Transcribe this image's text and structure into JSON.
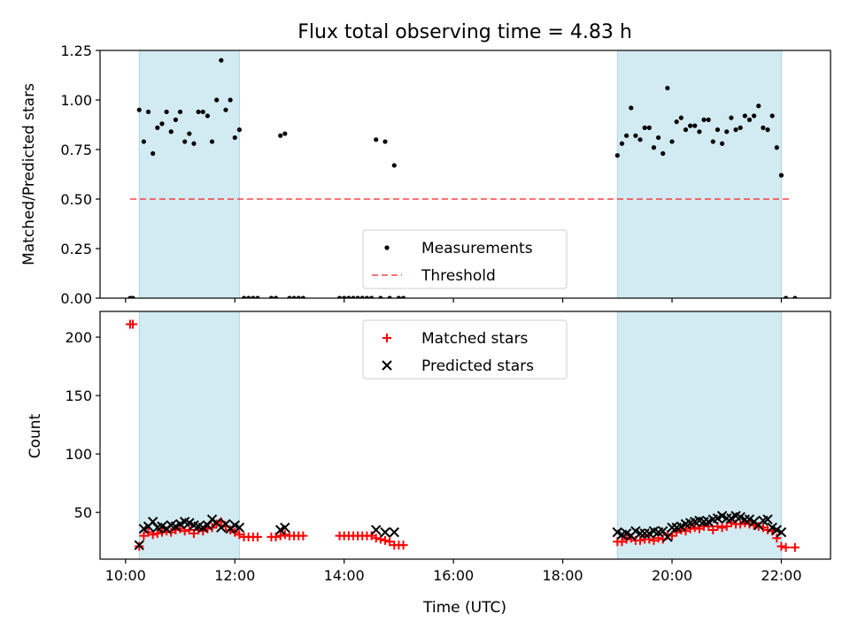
{
  "chart_data": [
    {
      "type": "scatter",
      "title": "Flux total observing time = 4.83 h",
      "xlabel": "",
      "ylabel": "Matched/Predicted stars",
      "xlim": [
        "09:32",
        "22:54"
      ],
      "ylim": [
        0,
        1.25
      ],
      "y_ticks": [
        "0.00",
        "0.25",
        "0.50",
        "0.75",
        "1.00",
        "1.25"
      ],
      "shaded_intervals": [
        [
          "10:15",
          "12:05"
        ],
        [
          "19:00",
          "22:00"
        ]
      ],
      "shade_color": "#add8e6",
      "threshold": {
        "name": "Threshold",
        "value": 0.5,
        "x_range": [
          "10:05",
          "22:10"
        ],
        "color": "#ff0000",
        "style": "dashed"
      },
      "legend": {
        "placement": "lower-center",
        "entries": [
          "Measurements",
          "Threshold"
        ]
      },
      "series": [
        {
          "name": "Measurements",
          "color": "#000000",
          "marker": "dot",
          "points": [
            [
              "10:05",
              0.0
            ],
            [
              "10:08",
              0.0
            ],
            [
              "10:15",
              0.95
            ],
            [
              "10:20",
              0.79
            ],
            [
              "10:25",
              0.94
            ],
            [
              "10:30",
              0.73
            ],
            [
              "10:35",
              0.86
            ],
            [
              "10:40",
              0.88
            ],
            [
              "10:45",
              0.94
            ],
            [
              "10:50",
              0.84
            ],
            [
              "10:55",
              0.9
            ],
            [
              "11:00",
              0.94
            ],
            [
              "11:05",
              0.79
            ],
            [
              "11:10",
              0.83
            ],
            [
              "11:15",
              0.78
            ],
            [
              "11:20",
              0.94
            ],
            [
              "11:25",
              0.94
            ],
            [
              "11:30",
              0.92
            ],
            [
              "11:35",
              0.79
            ],
            [
              "11:40",
              1.0
            ],
            [
              "11:45",
              1.2
            ],
            [
              "11:50",
              0.95
            ],
            [
              "11:55",
              1.0
            ],
            [
              "12:00",
              0.81
            ],
            [
              "12:05",
              0.85
            ],
            [
              "12:10",
              0.0
            ],
            [
              "12:15",
              0.0
            ],
            [
              "12:20",
              0.0
            ],
            [
              "12:25",
              0.0
            ],
            [
              "12:40",
              0.0
            ],
            [
              "12:45",
              0.0
            ],
            [
              "12:50",
              0.82
            ],
            [
              "12:55",
              0.83
            ],
            [
              "13:00",
              0.0
            ],
            [
              "13:05",
              0.0
            ],
            [
              "13:10",
              0.0
            ],
            [
              "13:15",
              0.0
            ],
            [
              "13:55",
              0.0
            ],
            [
              "14:00",
              0.0
            ],
            [
              "14:05",
              0.0
            ],
            [
              "14:10",
              0.0
            ],
            [
              "14:15",
              0.0
            ],
            [
              "14:20",
              0.0
            ],
            [
              "14:25",
              0.0
            ],
            [
              "14:30",
              0.0
            ],
            [
              "14:35",
              0.8
            ],
            [
              "14:40",
              0.0
            ],
            [
              "14:45",
              0.79
            ],
            [
              "14:50",
              0.0
            ],
            [
              "14:55",
              0.67
            ],
            [
              "15:00",
              0.0
            ],
            [
              "15:05",
              0.0
            ],
            [
              "19:00",
              0.72
            ],
            [
              "19:05",
              0.78
            ],
            [
              "19:10",
              0.82
            ],
            [
              "19:15",
              0.96
            ],
            [
              "19:20",
              0.82
            ],
            [
              "19:25",
              0.8
            ],
            [
              "19:30",
              0.86
            ],
            [
              "19:35",
              0.86
            ],
            [
              "19:40",
              0.76
            ],
            [
              "19:45",
              0.81
            ],
            [
              "19:50",
              0.73
            ],
            [
              "19:55",
              1.06
            ],
            [
              "20:00",
              0.79
            ],
            [
              "20:05",
              0.89
            ],
            [
              "20:10",
              0.91
            ],
            [
              "20:15",
              0.85
            ],
            [
              "20:20",
              0.87
            ],
            [
              "20:25",
              0.87
            ],
            [
              "20:30",
              0.84
            ],
            [
              "20:35",
              0.9
            ],
            [
              "20:40",
              0.9
            ],
            [
              "20:45",
              0.79
            ],
            [
              "20:50",
              0.85
            ],
            [
              "20:55",
              0.78
            ],
            [
              "21:00",
              0.84
            ],
            [
              "21:05",
              0.91
            ],
            [
              "21:10",
              0.85
            ],
            [
              "21:15",
              0.86
            ],
            [
              "21:20",
              0.92
            ],
            [
              "21:25",
              0.9
            ],
            [
              "21:30",
              0.92
            ],
            [
              "21:35",
              0.97
            ],
            [
              "21:40",
              0.86
            ],
            [
              "21:45",
              0.85
            ],
            [
              "21:50",
              0.92
            ],
            [
              "21:55",
              0.76
            ],
            [
              "22:00",
              0.62
            ],
            [
              "22:05",
              0.0
            ],
            [
              "22:15",
              0.0
            ]
          ]
        }
      ]
    },
    {
      "type": "scatter",
      "title": "",
      "xlabel": "Time (UTC)",
      "ylabel": "Count",
      "xlim": [
        "09:32",
        "22:54"
      ],
      "ylim": [
        10,
        222
      ],
      "y_ticks": [
        "50",
        "100",
        "150",
        "200"
      ],
      "x_ticks": [
        "10:00",
        "12:00",
        "14:00",
        "16:00",
        "18:00",
        "20:00",
        "22:00"
      ],
      "shaded_intervals": [
        [
          "10:15",
          "12:05"
        ],
        [
          "19:00",
          "22:00"
        ]
      ],
      "shade_color": "#add8e6",
      "legend": {
        "placement": "upper-center",
        "entries": [
          "Matched stars",
          "Predicted stars"
        ]
      },
      "series": [
        {
          "name": "Matched stars",
          "color": "#ff0000",
          "marker": "plus",
          "points": [
            [
              "10:05",
              211
            ],
            [
              "10:08",
              211
            ],
            [
              "10:15",
              21
            ],
            [
              "10:20",
              30
            ],
            [
              "10:25",
              33
            ],
            [
              "10:30",
              31
            ],
            [
              "10:35",
              32
            ],
            [
              "10:40",
              33
            ],
            [
              "10:45",
              34
            ],
            [
              "10:50",
              33
            ],
            [
              "10:55",
              35
            ],
            [
              "11:00",
              36
            ],
            [
              "11:05",
              34
            ],
            [
              "11:10",
              35
            ],
            [
              "11:15",
              32
            ],
            [
              "11:20",
              35
            ],
            [
              "11:25",
              34
            ],
            [
              "11:30",
              36
            ],
            [
              "11:35",
              37
            ],
            [
              "11:40",
              40
            ],
            [
              "11:45",
              42
            ],
            [
              "11:50",
              38
            ],
            [
              "11:55",
              35
            ],
            [
              "12:00",
              33
            ],
            [
              "12:05",
              31
            ],
            [
              "12:10",
              29
            ],
            [
              "12:15",
              29
            ],
            [
              "12:20",
              29
            ],
            [
              "12:25",
              29
            ],
            [
              "12:40",
              29
            ],
            [
              "12:45",
              29
            ],
            [
              "12:50",
              30
            ],
            [
              "12:55",
              31
            ],
            [
              "13:00",
              30
            ],
            [
              "13:05",
              30
            ],
            [
              "13:10",
              30
            ],
            [
              "13:15",
              30
            ],
            [
              "13:55",
              30
            ],
            [
              "14:00",
              30
            ],
            [
              "14:05",
              30
            ],
            [
              "14:10",
              30
            ],
            [
              "14:15",
              30
            ],
            [
              "14:20",
              30
            ],
            [
              "14:25",
              30
            ],
            [
              "14:30",
              30
            ],
            [
              "14:35",
              28
            ],
            [
              "14:40",
              27
            ],
            [
              "14:45",
              26
            ],
            [
              "14:50",
              25
            ],
            [
              "14:55",
              22
            ],
            [
              "15:00",
              22
            ],
            [
              "15:05",
              22
            ],
            [
              "19:00",
              25
            ],
            [
              "19:05",
              25
            ],
            [
              "19:10",
              27
            ],
            [
              "19:15",
              28
            ],
            [
              "19:20",
              26
            ],
            [
              "19:25",
              26
            ],
            [
              "19:30",
              27
            ],
            [
              "19:35",
              27
            ],
            [
              "19:40",
              26
            ],
            [
              "19:45",
              28
            ],
            [
              "19:50",
              27
            ],
            [
              "19:55",
              31
            ],
            [
              "20:00",
              30
            ],
            [
              "20:05",
              33
            ],
            [
              "20:10",
              35
            ],
            [
              "20:15",
              34
            ],
            [
              "20:20",
              36
            ],
            [
              "20:25",
              37
            ],
            [
              "20:30",
              36
            ],
            [
              "20:35",
              38
            ],
            [
              "20:40",
              38
            ],
            [
              "20:45",
              35
            ],
            [
              "20:50",
              38
            ],
            [
              "20:55",
              37
            ],
            [
              "21:00",
              38
            ],
            [
              "21:05",
              41
            ],
            [
              "21:10",
              40
            ],
            [
              "21:15",
              40
            ],
            [
              "21:20",
              41
            ],
            [
              "21:25",
              40
            ],
            [
              "21:30",
              39
            ],
            [
              "21:35",
              38
            ],
            [
              "21:40",
              37
            ],
            [
              "21:45",
              35
            ],
            [
              "21:50",
              34
            ],
            [
              "21:55",
              28
            ],
            [
              "22:00",
              21
            ],
            [
              "22:05",
              20
            ],
            [
              "22:15",
              20
            ]
          ]
        },
        {
          "name": "Predicted stars",
          "color": "#000000",
          "marker": "x",
          "points": [
            [
              "10:15",
              22
            ],
            [
              "10:20",
              36
            ],
            [
              "10:25",
              38
            ],
            [
              "10:30",
              42
            ],
            [
              "10:35",
              37
            ],
            [
              "10:40",
              38
            ],
            [
              "10:45",
              36
            ],
            [
              "10:50",
              39
            ],
            [
              "10:55",
              38
            ],
            [
              "11:00",
              40
            ],
            [
              "11:05",
              42
            ],
            [
              "11:10",
              41
            ],
            [
              "11:15",
              39
            ],
            [
              "11:20",
              38
            ],
            [
              "11:25",
              37
            ],
            [
              "11:30",
              39
            ],
            [
              "11:35",
              44
            ],
            [
              "11:40",
              41
            ],
            [
              "11:45",
              37
            ],
            [
              "11:50",
              40
            ],
            [
              "11:55",
              36
            ],
            [
              "12:00",
              39
            ],
            [
              "12:05",
              37
            ],
            [
              "12:50",
              35
            ],
            [
              "12:55",
              37
            ],
            [
              "14:35",
              35
            ],
            [
              "14:45",
              33
            ],
            [
              "14:55",
              33
            ],
            [
              "19:00",
              33
            ],
            [
              "19:05",
              31
            ],
            [
              "19:10",
              32
            ],
            [
              "19:15",
              30
            ],
            [
              "19:20",
              34
            ],
            [
              "19:25",
              32
            ],
            [
              "19:30",
              32
            ],
            [
              "19:35",
              32
            ],
            [
              "19:40",
              34
            ],
            [
              "19:45",
              33
            ],
            [
              "19:50",
              34
            ],
            [
              "19:55",
              29
            ],
            [
              "20:00",
              37
            ],
            [
              "20:05",
              37
            ],
            [
              "20:10",
              38
            ],
            [
              "20:15",
              40
            ],
            [
              "20:20",
              41
            ],
            [
              "20:25",
              42
            ],
            [
              "20:30",
              43
            ],
            [
              "20:35",
              42
            ],
            [
              "20:40",
              42
            ],
            [
              "20:45",
              44
            ],
            [
              "20:50",
              45
            ],
            [
              "20:55",
              47
            ],
            [
              "21:00",
              45
            ],
            [
              "21:05",
              45
            ],
            [
              "21:10",
              47
            ],
            [
              "21:15",
              46
            ],
            [
              "21:20",
              44
            ],
            [
              "21:25",
              44
            ],
            [
              "21:30",
              42
            ],
            [
              "21:35",
              39
            ],
            [
              "21:40",
              43
            ],
            [
              "21:45",
              44
            ],
            [
              "21:50",
              37
            ],
            [
              "21:55",
              35
            ],
            [
              "22:00",
              33
            ]
          ]
        }
      ]
    }
  ]
}
